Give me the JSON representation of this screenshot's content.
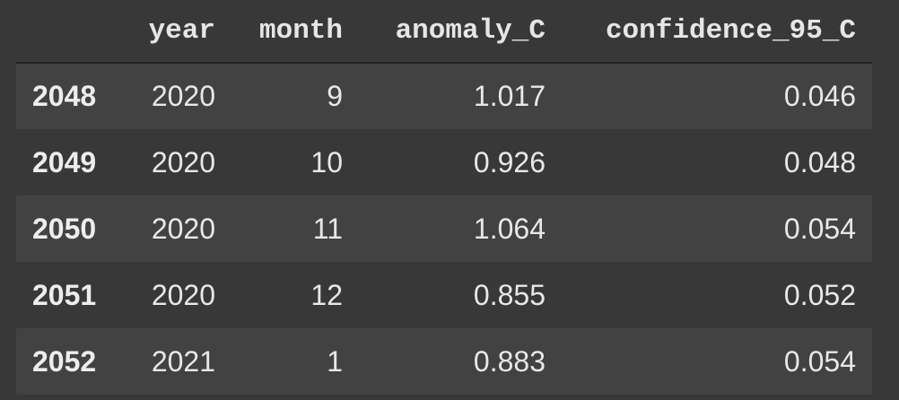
{
  "table": {
    "index_header": "",
    "columns": [
      "year",
      "month",
      "anomaly_C",
      "confidence_95_C"
    ],
    "rows": [
      {
        "index": "2048",
        "year": "2020",
        "month": "9",
        "anomaly_C": "1.017",
        "confidence_95_C": "0.046"
      },
      {
        "index": "2049",
        "year": "2020",
        "month": "10",
        "anomaly_C": "0.926",
        "confidence_95_C": "0.048"
      },
      {
        "index": "2050",
        "year": "2020",
        "month": "11",
        "anomaly_C": "1.064",
        "confidence_95_C": "0.054"
      },
      {
        "index": "2051",
        "year": "2020",
        "month": "12",
        "anomaly_C": "0.855",
        "confidence_95_C": "0.052"
      },
      {
        "index": "2052",
        "year": "2021",
        "month": "1",
        "anomaly_C": "0.883",
        "confidence_95_C": "0.054"
      }
    ]
  },
  "colors": {
    "background": "#383838",
    "row_stripe": "#424242",
    "text": "#e8e8e8",
    "header_rule": "#222222"
  }
}
